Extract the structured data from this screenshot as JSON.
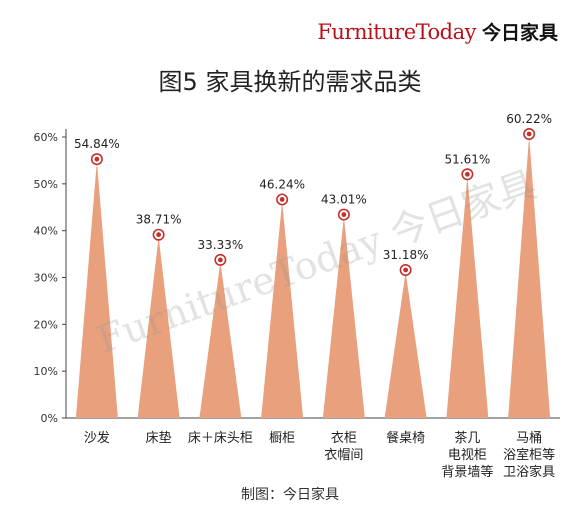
{
  "brand": {
    "logo_text": "FurnitureToday",
    "logo_cn": "今日家具",
    "accent_color": "#b5121b"
  },
  "chart_data": {
    "type": "bar",
    "title": "图5 家具换新的需求品类",
    "categories": [
      [
        "沙发"
      ],
      [
        "床垫"
      ],
      [
        "床＋床头柜"
      ],
      [
        "橱柜"
      ],
      [
        "衣柜",
        "衣帽间"
      ],
      [
        "餐桌椅"
      ],
      [
        "茶几",
        "电视柜",
        "背景墙等"
      ],
      [
        "马桶",
        "浴室柜等",
        "卫浴家具"
      ]
    ],
    "values": [
      54.84,
      38.71,
      33.33,
      46.24,
      43.01,
      31.18,
      51.61,
      60.22
    ],
    "value_labels": [
      "54.84%",
      "38.71%",
      "33.33%",
      "46.24%",
      "43.01%",
      "31.18%",
      "51.61%",
      "60.22%"
    ],
    "y_ticks": [
      "0%",
      "10%",
      "20%",
      "30%",
      "40%",
      "50%",
      "60%"
    ],
    "ylim": [
      0,
      65
    ],
    "bar_shape": "spike",
    "bar_color": "#e9a07c",
    "marker_color": "#c2322b",
    "grid": false,
    "xlabel": "",
    "ylabel": ""
  },
  "footer": {
    "source": "制图：今日家具"
  },
  "watermark": {
    "text": "FurnitureToday 今日家具"
  }
}
